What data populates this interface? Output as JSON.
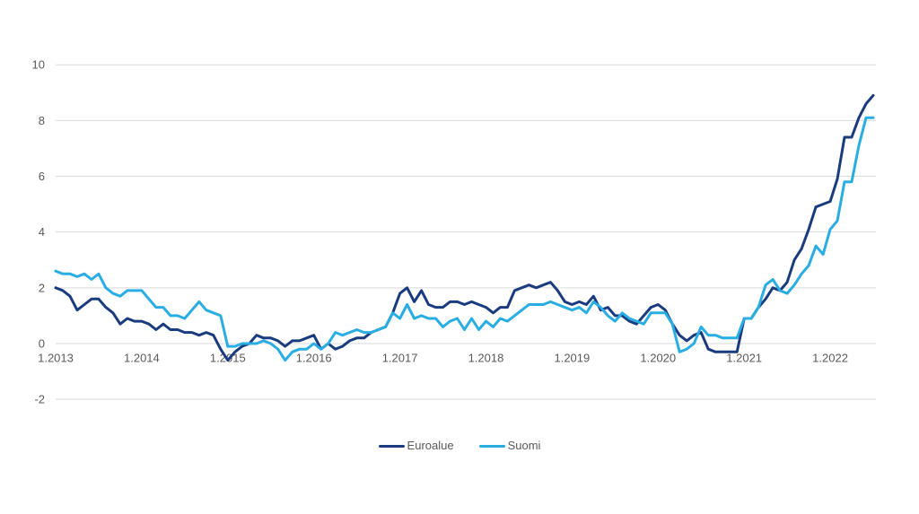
{
  "chart_data": {
    "type": "line",
    "title": "",
    "xlabel": "",
    "ylabel": "",
    "ylim": [
      -2,
      10
    ],
    "y_ticks": [
      -2,
      0,
      2,
      4,
      6,
      8,
      10
    ],
    "grid": true,
    "legend_position": "bottom-center",
    "x_unit": "month",
    "x_tick_every_months": 12,
    "x_tick_labels": [
      "1.2013",
      "1.2014",
      "1.2015",
      "1.2016",
      "1.2017",
      "1.2018",
      "1.2019",
      "1.2020",
      "1.2021",
      "1.2022"
    ],
    "x_range_note": "monthly points from 1.2013 to 7.2022",
    "colors": {
      "euroalue": "#1A3B7E",
      "suomi": "#29ADE2",
      "gridline": "#D9D9D9",
      "tick_text": "#595959"
    },
    "series": [
      {
        "name": "Euroalue",
        "color": "#1A3B7E",
        "values": [
          2.0,
          1.9,
          1.7,
          1.2,
          1.4,
          1.6,
          1.6,
          1.3,
          1.1,
          0.7,
          0.9,
          0.8,
          0.8,
          0.7,
          0.5,
          0.7,
          0.5,
          0.5,
          0.4,
          0.4,
          0.3,
          0.4,
          0.3,
          -0.2,
          -0.6,
          -0.3,
          -0.1,
          0.0,
          0.3,
          0.2,
          0.2,
          0.1,
          -0.1,
          0.1,
          0.1,
          0.2,
          0.3,
          -0.2,
          0.0,
          -0.2,
          -0.1,
          0.1,
          0.2,
          0.2,
          0.4,
          0.5,
          0.6,
          1.1,
          1.8,
          2.0,
          1.5,
          1.9,
          1.4,
          1.3,
          1.3,
          1.5,
          1.5,
          1.4,
          1.5,
          1.4,
          1.3,
          1.1,
          1.3,
          1.3,
          1.9,
          2.0,
          2.1,
          2.0,
          2.1,
          2.2,
          1.9,
          1.5,
          1.4,
          1.5,
          1.4,
          1.7,
          1.2,
          1.3,
          1.0,
          1.0,
          0.8,
          0.7,
          1.0,
          1.3,
          1.4,
          1.2,
          0.7,
          0.3,
          0.1,
          0.3,
          0.4,
          -0.2,
          -0.3,
          -0.3,
          -0.3,
          -0.3,
          0.9,
          0.9,
          1.3,
          1.6,
          2.0,
          1.9,
          2.2,
          3.0,
          3.4,
          4.1,
          4.9,
          5.0,
          5.1,
          5.9,
          7.4,
          7.4,
          8.1,
          8.6,
          8.9
        ]
      },
      {
        "name": "Suomi",
        "color": "#29ADE2",
        "values": [
          2.6,
          2.5,
          2.5,
          2.4,
          2.5,
          2.3,
          2.5,
          2.0,
          1.8,
          1.7,
          1.9,
          1.9,
          1.9,
          1.6,
          1.3,
          1.3,
          1.0,
          1.0,
          0.9,
          1.2,
          1.5,
          1.2,
          1.1,
          1.0,
          -0.1,
          -0.1,
          0.0,
          0.0,
          0.0,
          0.1,
          0.0,
          -0.2,
          -0.6,
          -0.3,
          -0.2,
          -0.2,
          0.0,
          -0.2,
          0.0,
          0.4,
          0.3,
          0.4,
          0.5,
          0.4,
          0.4,
          0.5,
          0.6,
          1.1,
          0.9,
          1.4,
          0.9,
          1.0,
          0.9,
          0.9,
          0.6,
          0.8,
          0.9,
          0.5,
          0.9,
          0.5,
          0.8,
          0.6,
          0.9,
          0.8,
          1.0,
          1.2,
          1.4,
          1.4,
          1.4,
          1.5,
          1.4,
          1.3,
          1.2,
          1.3,
          1.1,
          1.5,
          1.3,
          1.0,
          0.8,
          1.1,
          0.9,
          0.8,
          0.7,
          1.1,
          1.1,
          1.1,
          0.7,
          -0.3,
          -0.2,
          0.0,
          0.6,
          0.3,
          0.3,
          0.2,
          0.2,
          0.2,
          0.9,
          0.9,
          1.3,
          2.1,
          2.3,
          1.9,
          1.8,
          2.1,
          2.5,
          2.8,
          3.5,
          3.2,
          4.1,
          4.4,
          5.8,
          5.8,
          7.1,
          8.1,
          8.1
        ]
      }
    ]
  },
  "legend": {
    "items": [
      {
        "label": "Euroalue"
      },
      {
        "label": "Suomi"
      }
    ]
  }
}
